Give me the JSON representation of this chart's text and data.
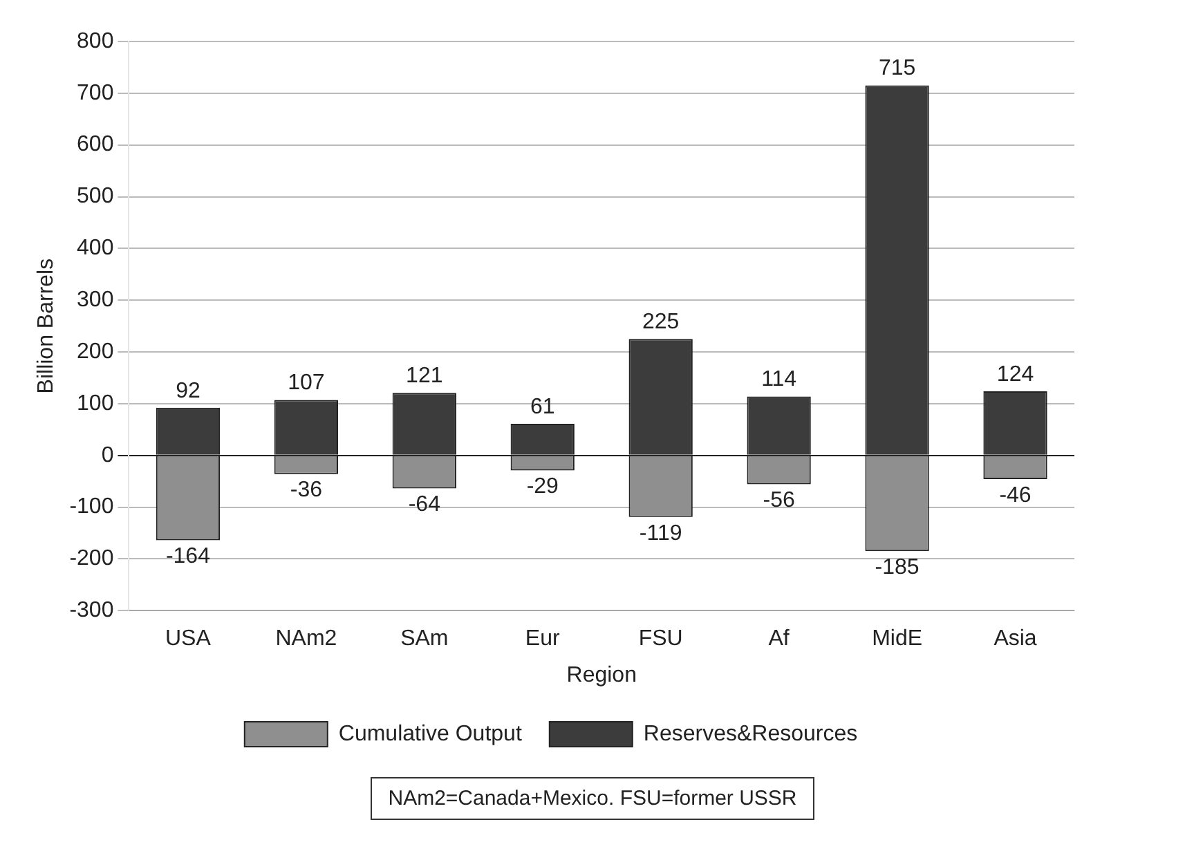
{
  "chart_data": {
    "type": "bar",
    "stacked": true,
    "xlabel": "Region",
    "ylabel": "Billion Barrels",
    "categories": [
      "USA",
      "NAm2",
      "SAm",
      "Eur",
      "FSU",
      "Af",
      "MidE",
      "Asia"
    ],
    "series": [
      {
        "name": "Cumulative Output",
        "color": "#8f8f8f",
        "values": [
          -164,
          -36,
          -64,
          -29,
          -119,
          -56,
          -185,
          -46
        ]
      },
      {
        "name": "Reserves&Resources",
        "color": "#3c3c3c",
        "values": [
          92,
          107,
          121,
          61,
          225,
          114,
          715,
          124
        ]
      }
    ],
    "ylim": [
      -300,
      800
    ],
    "yticks": [
      -300,
      -200,
      -100,
      0,
      100,
      200,
      300,
      400,
      500,
      600,
      700,
      800
    ],
    "grid": "y",
    "legend": "bottom",
    "data_labels": true,
    "annotations": [
      "NAm2=Canada+Mexico.  FSU=former USSR"
    ]
  }
}
